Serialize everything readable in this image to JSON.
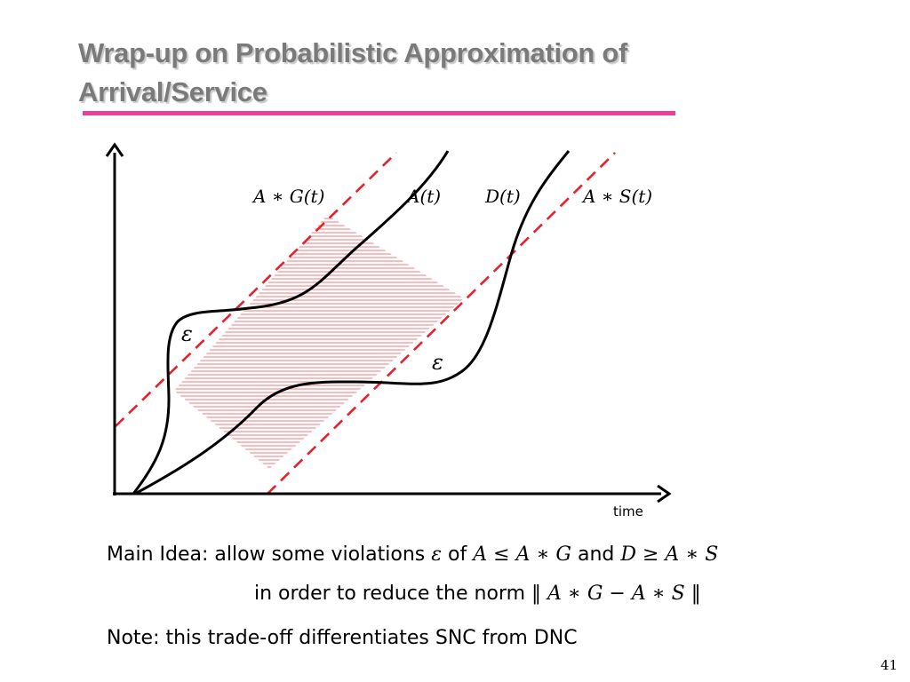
{
  "slide": {
    "title_line1": "Wrap-up on Probabilistic Approximation of",
    "title_line2": "Arrival/Service",
    "page_number": "41",
    "accent_color": "#ee3e9a",
    "title_color": "#7a7a7a"
  },
  "diagram": {
    "labels": {
      "ag": "A ∗ G(t)",
      "a": "A(t)",
      "d": "D(t)",
      "as": "A ∗ S(t)",
      "eps_left": "ε",
      "eps_right": "ε",
      "x_axis": "time"
    },
    "colors": {
      "curve": "#000000",
      "dashed": "#e8202a",
      "hatch": "#e8202a"
    }
  },
  "text": {
    "main_label": "Main Idea:",
    "main_1": "allow some violations",
    "eps": "ε",
    "of": "of",
    "ineq1": "A ≤ A ∗ G",
    "and": "and",
    "ineq2": "D ≥ A ∗ S",
    "line2": "in order to reduce the norm",
    "norm": "‖ A ∗ G − A ∗ S ‖",
    "note": "Note: this trade-off differentiates SNC from DNC"
  }
}
